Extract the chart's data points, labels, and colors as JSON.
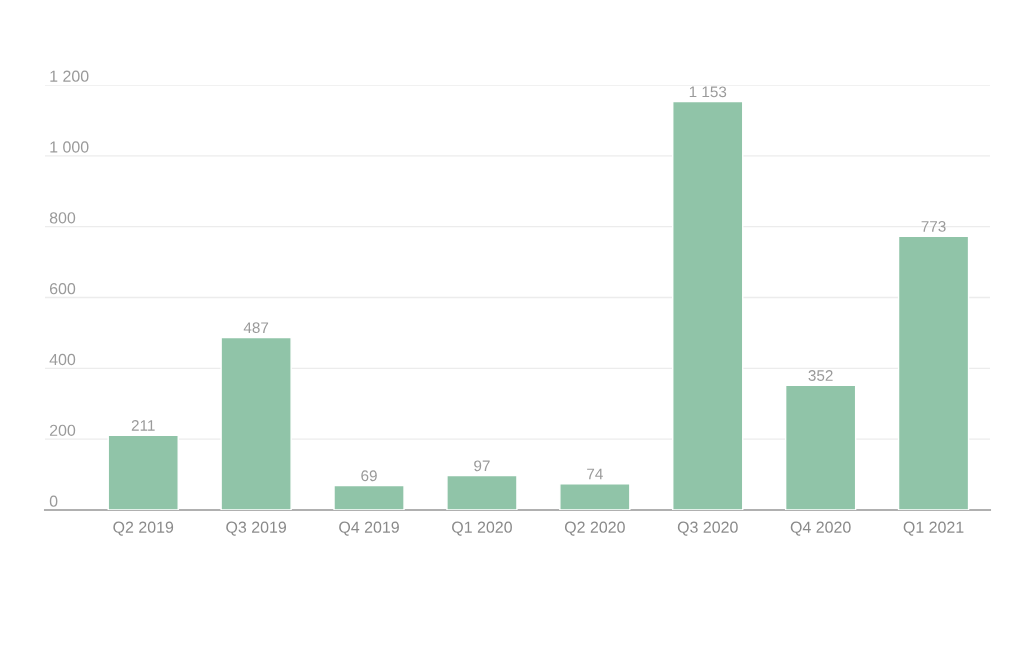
{
  "chart_data": {
    "type": "bar",
    "categories": [
      "Q2 2019",
      "Q3 2019",
      "Q4 2019",
      "Q1 2020",
      "Q2 2020",
      "Q3 2020",
      "Q4 2020",
      "Q1 2021"
    ],
    "values": [
      211,
      487,
      69,
      97,
      74,
      1153,
      352,
      773
    ],
    "value_labels": [
      "211",
      "487",
      "69",
      "97",
      "74",
      "1 153",
      "352",
      "773"
    ],
    "color": "#90c4a8",
    "ylim": [
      0,
      1200
    ],
    "yticks": [
      0,
      {
        "value": 200,
        "label": "200"
      },
      {
        "value": 400,
        "label": "400"
      },
      {
        "value": 600,
        "label": "600"
      },
      {
        "value": 800,
        "label": "800"
      },
      {
        "value": 1000,
        "label": "1 000"
      },
      {
        "value": 1200,
        "label": "1 200"
      }
    ],
    "grid": "y"
  }
}
